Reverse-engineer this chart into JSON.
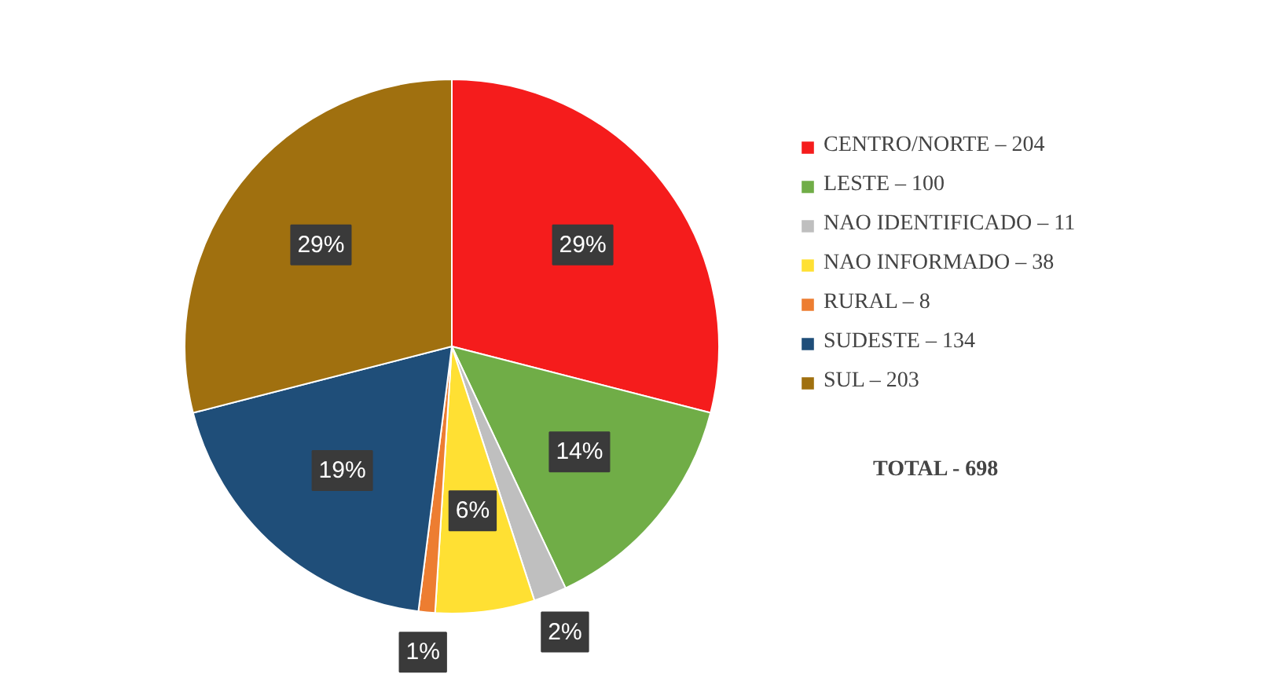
{
  "chart_data": {
    "type": "pie",
    "categories": [
      "CENTRO/NORTE – 204",
      "LESTE – 100",
      "NAO IDENTIFICADO – 11",
      "NAO INFORMADO – 38",
      "RURAL – 8",
      "SUDESTE – 134",
      "SUL – 203"
    ],
    "values": [
      29,
      14,
      2,
      6,
      1,
      19,
      29
    ],
    "value_labels": [
      "29%",
      "14%",
      "2%",
      "6%",
      "1%",
      "19%",
      "29%"
    ],
    "colors": [
      "#f51c1c",
      "#70ad47",
      "#bfbfbf",
      "#ffe033",
      "#ed7d31",
      "#1f4e79",
      "#a0700f"
    ],
    "legend": "right",
    "annotations": [
      "TOTAL - 698"
    ]
  }
}
